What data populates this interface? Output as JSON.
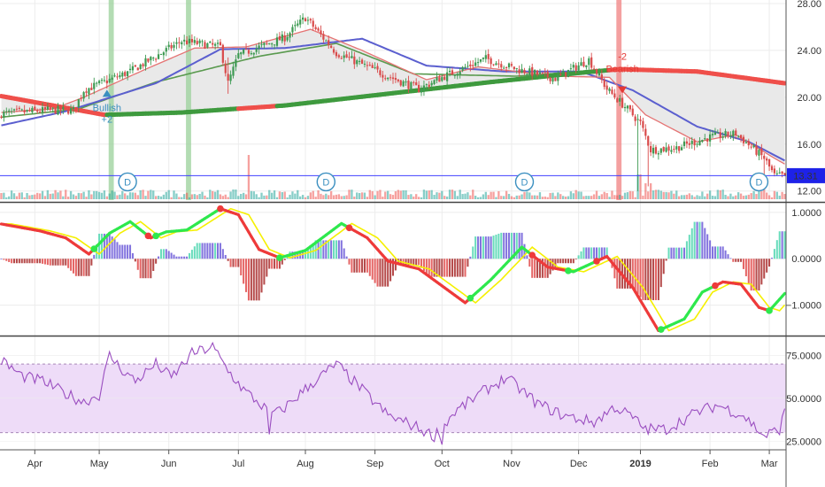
{
  "chart_data": [
    {
      "type": "candlestick",
      "ylim": [
        11.3,
        28
      ],
      "yticks": [
        12,
        16,
        20,
        24,
        28
      ],
      "ytick_labels": [
        "12.00",
        "16.00",
        "20.00",
        "24.00",
        "28.00"
      ],
      "last_price": 13.31,
      "last_price_label": "13.31",
      "price_anchors": [
        [
          0,
          18.6
        ],
        [
          18,
          18.9
        ],
        [
          28,
          18.9
        ],
        [
          32,
          20.6
        ],
        [
          50,
          22.2
        ],
        [
          70,
          24.8
        ],
        [
          85,
          24.3
        ],
        [
          88,
          21.2
        ],
        [
          92,
          23.6
        ],
        [
          110,
          25.1
        ],
        [
          118,
          26.8
        ],
        [
          130,
          23.8
        ],
        [
          150,
          21.8
        ],
        [
          162,
          20.7
        ],
        [
          172,
          21.8
        ],
        [
          188,
          23.3
        ],
        [
          200,
          22.4
        ],
        [
          215,
          21.6
        ],
        [
          228,
          23.2
        ],
        [
          235,
          20.7
        ],
        [
          242,
          19.2
        ],
        [
          248,
          17.8
        ],
        [
          252,
          15.5
        ],
        [
          262,
          15.7
        ],
        [
          275,
          16.6
        ],
        [
          285,
          16.9
        ],
        [
          296,
          14.8
        ],
        [
          300,
          13.3
        ],
        [
          304,
          13.31
        ]
      ],
      "ema_fast_anchors": [
        [
          0,
          18.7
        ],
        [
          20,
          19.0
        ],
        [
          32,
          20.0
        ],
        [
          55,
          22.3
        ],
        [
          75,
          24.2
        ],
        [
          95,
          24.3
        ],
        [
          120,
          25.8
        ],
        [
          140,
          24.0
        ],
        [
          165,
          21.5
        ],
        [
          185,
          22.6
        ],
        [
          215,
          21.8
        ],
        [
          236,
          21.7
        ],
        [
          250,
          18.5
        ],
        [
          270,
          16.2
        ],
        [
          285,
          16.8
        ],
        [
          300,
          14.8
        ],
        [
          304,
          14.3
        ]
      ],
      "ema_mid_anchors": [
        [
          0,
          17.6
        ],
        [
          25,
          18.8
        ],
        [
          60,
          21.2
        ],
        [
          85,
          24.1
        ],
        [
          110,
          24.2
        ],
        [
          140,
          25.0
        ],
        [
          165,
          22.7
        ],
        [
          195,
          22.2
        ],
        [
          225,
          22.2
        ],
        [
          245,
          20.6
        ],
        [
          270,
          17.5
        ],
        [
          290,
          16.2
        ],
        [
          304,
          14.6
        ]
      ],
      "sma_slow_anchors": [
        [
          0,
          18.3
        ],
        [
          30,
          19.0
        ],
        [
          60,
          21.3
        ],
        [
          100,
          23.5
        ],
        [
          130,
          24.6
        ],
        [
          160,
          22.0
        ],
        [
          200,
          21.8
        ],
        [
          230,
          22.3
        ]
      ],
      "ma_long_anchors": [
        [
          0,
          20.1
        ],
        [
          20,
          19.3
        ],
        [
          40,
          18.5
        ],
        [
          70,
          18.7
        ],
        [
          110,
          19.3
        ],
        [
          150,
          20.3
        ],
        [
          190,
          21.3
        ],
        [
          225,
          22.1
        ],
        [
          240,
          22.4
        ],
        [
          270,
          22.2
        ],
        [
          304,
          21.2
        ]
      ],
      "long_ma_red_ranges": [
        [
          0,
          40
        ],
        [
          92,
          106
        ],
        [
          236,
          304
        ]
      ],
      "signal_bands": [
        {
          "start": 42,
          "end": 43,
          "color": "green"
        },
        {
          "start": 72,
          "end": 73,
          "color": "green"
        },
        {
          "start": 239,
          "end": 240,
          "color": "red"
        }
      ],
      "dividend_markers": [
        {
          "x": 49,
          "label": "D"
        },
        {
          "x": 126,
          "label": "D"
        },
        {
          "x": 203,
          "label": "D"
        },
        {
          "x": 294,
          "label": "D"
        }
      ],
      "signals": [
        {
          "x": 41,
          "type": "bullish",
          "line1": "Bullish",
          "line2": "+2"
        },
        {
          "x": 241,
          "type": "bearish",
          "line1": "-2",
          "line2": "Bearish"
        }
      ]
    },
    {
      "type": "oscillator",
      "ylim": [
        -1.6,
        1.15
      ],
      "yticks": [
        1,
        0,
        -1
      ],
      "ytick_labels": [
        "1.0000",
        "0.0000",
        "−1.0000"
      ],
      "line_anchors": [
        [
          0,
          0.75
        ],
        [
          15,
          0.6
        ],
        [
          25,
          0.45
        ],
        [
          34,
          0.1
        ],
        [
          42,
          0.55
        ],
        [
          50,
          0.8
        ],
        [
          58,
          0.45
        ],
        [
          64,
          0.58
        ],
        [
          72,
          0.62
        ],
        [
          85,
          1.08
        ],
        [
          92,
          0.95
        ],
        [
          100,
          0.2
        ],
        [
          108,
          0.02
        ],
        [
          118,
          0.18
        ],
        [
          132,
          0.76
        ],
        [
          142,
          0.45
        ],
        [
          150,
          -0.05
        ],
        [
          162,
          -0.22
        ],
        [
          180,
          -0.95
        ],
        [
          190,
          -0.45
        ],
        [
          202,
          0.25
        ],
        [
          212,
          -0.18
        ],
        [
          222,
          -0.28
        ],
        [
          235,
          0.05
        ],
        [
          245,
          -0.62
        ],
        [
          255,
          -1.55
        ],
        [
          265,
          -1.3
        ],
        [
          272,
          -0.72
        ],
        [
          280,
          -0.5
        ],
        [
          287,
          -0.55
        ],
        [
          294,
          -1.05
        ],
        [
          298,
          -1.12
        ],
        [
          304,
          -0.75
        ]
      ],
      "green_segments": [
        [
          36,
          56
        ],
        [
          60,
          84
        ],
        [
          108,
          134
        ],
        [
          182,
          205
        ],
        [
          220,
          230
        ],
        [
          256,
          276
        ],
        [
          298,
          304
        ]
      ],
      "signal_lag": 4,
      "histogram_scale": 2.4
    },
    {
      "type": "line",
      "ylim": [
        21,
        84
      ],
      "yticks": [
        25,
        50,
        75
      ],
      "ytick_labels": [
        "25.0000",
        "50.0000",
        "75.0000"
      ],
      "band": [
        30,
        70
      ],
      "rsi_anchors": [
        [
          0,
          72
        ],
        [
          8,
          63
        ],
        [
          16,
          60
        ],
        [
          26,
          52
        ],
        [
          32,
          48
        ],
        [
          38,
          52
        ],
        [
          42,
          75
        ],
        [
          46,
          68
        ],
        [
          52,
          60
        ],
        [
          60,
          70
        ],
        [
          66,
          62
        ],
        [
          74,
          76
        ],
        [
          82,
          80
        ],
        [
          88,
          66
        ],
        [
          94,
          55
        ],
        [
          104,
          42
        ],
        [
          108,
          42
        ],
        [
          120,
          58
        ],
        [
          130,
          70
        ],
        [
          140,
          55
        ],
        [
          150,
          40
        ],
        [
          160,
          34
        ],
        [
          168,
          28
        ],
        [
          176,
          42
        ],
        [
          188,
          55
        ],
        [
          196,
          62
        ],
        [
          208,
          47
        ],
        [
          218,
          40
        ],
        [
          230,
          36
        ],
        [
          238,
          45
        ],
        [
          244,
          40
        ],
        [
          250,
          32
        ],
        [
          258,
          32
        ],
        [
          270,
          42
        ],
        [
          278,
          46
        ],
        [
          288,
          40
        ],
        [
          296,
          28
        ],
        [
          302,
          32
        ],
        [
          304,
          42
        ]
      ],
      "rsi_spikes": [
        [
          104,
          29
        ],
        [
          171,
          23
        ]
      ]
    }
  ],
  "x_axis": {
    "labels": [
      {
        "x": 13,
        "text": "Apr",
        "bold": false
      },
      {
        "x": 38,
        "text": "May",
        "bold": false
      },
      {
        "x": 65,
        "text": "Jun",
        "bold": false
      },
      {
        "x": 92,
        "text": "Jul",
        "bold": false
      },
      {
        "x": 118,
        "text": "Aug",
        "bold": false
      },
      {
        "x": 145,
        "text": "Sep",
        "bold": false
      },
      {
        "x": 171,
        "text": "Oct",
        "bold": false
      },
      {
        "x": 198,
        "text": "Nov",
        "bold": false
      },
      {
        "x": 224,
        "text": "Dec",
        "bold": false
      },
      {
        "x": 248,
        "text": "2019",
        "bold": true
      },
      {
        "x": 275,
        "text": "Feb",
        "bold": false
      },
      {
        "x": 298,
        "text": "Mar",
        "bold": false
      }
    ]
  },
  "colors": {
    "up": "#26a69a",
    "down": "#ef5350",
    "candle_up": "#3d9a52",
    "candle_down": "#d94b4b",
    "ema_fast": "#e57373",
    "ema_mid": "#5b5fcf",
    "sma_slow": "#5a9a4f",
    "ma_long_green": "#3e9a3e",
    "ma_long_red": "#ef4f4a",
    "fill": "#e9e9e9",
    "signal_green": "#9ad09a",
    "signal_red": "#f08080",
    "dividend": "#3a8fc0",
    "bullish": "#3a8fc0",
    "bearish": "#e53935",
    "price_line": "#4040ff",
    "price_tag": "#1e22e8",
    "osc_green": "#2ee84d",
    "osc_red": "#ee3a3a",
    "osc_signal": "#f5f000",
    "hist_pos": "#4fd6b0",
    "hist_pos_dark": "#6c5bd8",
    "hist_neg": "#e04a4a",
    "hist_neg_dark": "#a82a2a",
    "rsi": "#9a4ec0",
    "rsi_band": "#eedcf8",
    "rsi_band_line": "#a888b8",
    "grid": "#ececec",
    "separator": "#444444"
  }
}
